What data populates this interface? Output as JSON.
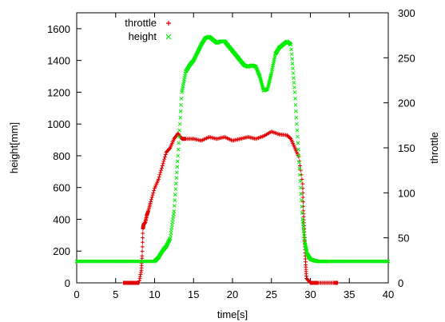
{
  "chart_data": {
    "type": "scatter",
    "xlabel": "time[s]",
    "ylabel": "height[mm]",
    "y2label": "throttle",
    "xlim": [
      0,
      40
    ],
    "ylim": [
      0,
      1700
    ],
    "y2lim": [
      0,
      300
    ],
    "xticks": [
      0,
      5,
      10,
      15,
      20,
      25,
      30,
      35,
      40
    ],
    "yticks": [
      0,
      200,
      400,
      600,
      800,
      1000,
      1200,
      1400,
      1600
    ],
    "y2ticks": [
      0,
      50,
      100,
      150,
      200,
      250,
      300
    ],
    "grid": false,
    "legend": "top-left",
    "series": [
      {
        "name": "throttle",
        "axis": "y2",
        "color": "#e00000",
        "marker": "+",
        "x": [
          6.0,
          6.5,
          7.0,
          7.5,
          8.0,
          8.3,
          8.4,
          8.5,
          8.6,
          8.8,
          9.0,
          9.2,
          9.5,
          10.0,
          10.5,
          11.0,
          11.5,
          12.0,
          12.5,
          13.0,
          13.5,
          14.0,
          15.0,
          16.0,
          17.0,
          18.0,
          19.0,
          20.0,
          21.0,
          22.0,
          23.0,
          24.0,
          25.0,
          26.0,
          27.0,
          27.5,
          28.0,
          28.5,
          29.0,
          29.1,
          29.2,
          29.3,
          29.4,
          29.5,
          30.0,
          30.5,
          31.0,
          32.0,
          33.0,
          33.5
        ],
        "y": [
          0,
          0,
          0,
          0,
          0,
          14,
          30,
          60,
          65,
          67,
          75,
          80,
          90,
          105,
          115,
          130,
          145,
          150,
          160,
          166,
          160,
          160,
          160,
          158,
          162,
          160,
          162,
          158,
          160,
          162,
          160,
          163,
          168,
          165,
          164,
          160,
          150,
          140,
          110,
          80,
          60,
          40,
          20,
          5,
          0,
          0,
          0,
          0,
          0,
          0
        ]
      },
      {
        "name": "height",
        "axis": "y1",
        "color": "#00ee00",
        "marker": "x",
        "x": [
          0,
          2,
          4,
          6,
          8,
          10,
          10.5,
          11,
          11.5,
          12,
          12.5,
          13,
          13.5,
          14,
          14.5,
          15,
          15.5,
          16,
          16.5,
          17,
          17.5,
          18,
          18.5,
          19,
          19.5,
          20,
          20.5,
          21,
          21.5,
          22,
          22.5,
          23,
          23.5,
          24,
          24.5,
          25,
          25.5,
          26,
          26.5,
          27,
          27.5,
          28,
          28.5,
          29,
          29.3,
          29.6,
          30,
          30.5,
          31,
          32,
          34,
          36,
          38,
          40
        ],
        "y": [
          135,
          135,
          135,
          135,
          135,
          135,
          160,
          200,
          230,
          280,
          450,
          800,
          1200,
          1330,
          1370,
          1400,
          1450,
          1500,
          1540,
          1550,
          1530,
          1510,
          1520,
          1520,
          1490,
          1460,
          1430,
          1400,
          1370,
          1360,
          1370,
          1360,
          1300,
          1210,
          1220,
          1320,
          1440,
          1480,
          1500,
          1520,
          1500,
          1200,
          800,
          400,
          250,
          180,
          150,
          140,
          135,
          135,
          135,
          135,
          135,
          135
        ]
      }
    ]
  }
}
